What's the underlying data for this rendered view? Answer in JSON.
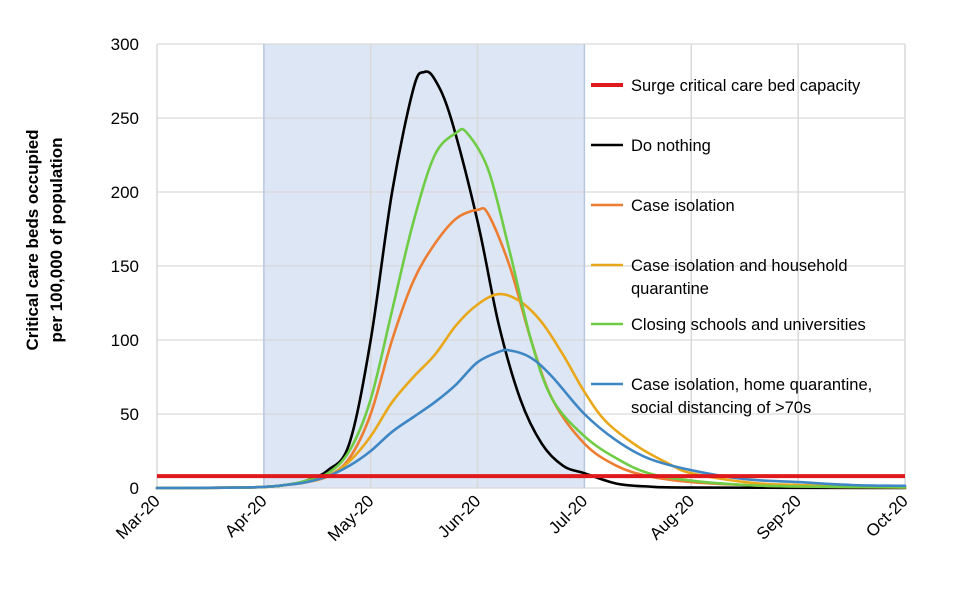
{
  "chart_data": {
    "type": "line",
    "title": "",
    "xlabel": "",
    "ylabel_lines": [
      "Critical care beds occupied",
      "per 100,000 of population"
    ],
    "ylim": [
      0,
      300
    ],
    "yticks": [
      "0",
      "50",
      "100",
      "150",
      "200",
      "250",
      "300"
    ],
    "x_month_range": [
      0,
      7
    ],
    "xticks": [
      "Mar-20",
      "Apr-20",
      "May-20",
      "Jun-20",
      "Jul-20",
      "Aug-20",
      "Sep-20",
      "Oct-20"
    ],
    "intervention_period": [
      1,
      4
    ],
    "grid": true,
    "colors": {
      "shade": "#dce6f4",
      "grid": "#d9d9d9",
      "capacity": "#e0191c"
    },
    "capacity_line": {
      "name": "Surge critical care bed capacity",
      "value": 8
    },
    "series": [
      {
        "name": "Do nothing",
        "color": "#000000",
        "points": [
          [
            0,
            0
          ],
          [
            0.9,
            0.5
          ],
          [
            1.2,
            2
          ],
          [
            1.4,
            5
          ],
          [
            1.6,
            12
          ],
          [
            1.8,
            30
          ],
          [
            2.0,
            100
          ],
          [
            2.2,
            200
          ],
          [
            2.4,
            270
          ],
          [
            2.5,
            281
          ],
          [
            2.6,
            276
          ],
          [
            2.75,
            250
          ],
          [
            3.0,
            180
          ],
          [
            3.2,
            110
          ],
          [
            3.4,
            60
          ],
          [
            3.6,
            30
          ],
          [
            3.8,
            15
          ],
          [
            4.0,
            10
          ],
          [
            4.3,
            3
          ],
          [
            4.6,
            1
          ],
          [
            5.0,
            0.3
          ],
          [
            7,
            0
          ]
        ]
      },
      {
        "name": "Case isolation",
        "color": "#ed7d31",
        "points": [
          [
            0,
            0
          ],
          [
            0.9,
            0.5
          ],
          [
            1.2,
            2
          ],
          [
            1.4,
            4
          ],
          [
            1.6,
            8
          ],
          [
            1.8,
            20
          ],
          [
            2.0,
            50
          ],
          [
            2.2,
            100
          ],
          [
            2.4,
            140
          ],
          [
            2.6,
            165
          ],
          [
            2.8,
            182
          ],
          [
            3.0,
            188
          ],
          [
            3.1,
            185
          ],
          [
            3.3,
            150
          ],
          [
            3.5,
            100
          ],
          [
            3.7,
            60
          ],
          [
            4.0,
            30
          ],
          [
            4.3,
            15
          ],
          [
            4.6,
            8
          ],
          [
            5.0,
            4
          ],
          [
            5.5,
            2
          ],
          [
            6.0,
            1
          ],
          [
            7,
            0.3
          ]
        ]
      },
      {
        "name": "Case isolation and household quarantine",
        "color": "#e9a81a",
        "points": [
          [
            0,
            0
          ],
          [
            0.9,
            0.5
          ],
          [
            1.2,
            2
          ],
          [
            1.4,
            4
          ],
          [
            1.6,
            8
          ],
          [
            1.8,
            18
          ],
          [
            2.0,
            35
          ],
          [
            2.2,
            58
          ],
          [
            2.4,
            75
          ],
          [
            2.6,
            90
          ],
          [
            2.8,
            110
          ],
          [
            3.0,
            124
          ],
          [
            3.2,
            131
          ],
          [
            3.4,
            126
          ],
          [
            3.6,
            112
          ],
          [
            3.8,
            90
          ],
          [
            4.0,
            65
          ],
          [
            4.2,
            45
          ],
          [
            4.5,
            28
          ],
          [
            4.8,
            16
          ],
          [
            5.0,
            10
          ],
          [
            5.5,
            4
          ],
          [
            6.0,
            2
          ],
          [
            7,
            1
          ]
        ]
      },
      {
        "name": "Closing schools and universities",
        "color": "#6fcc45",
        "points": [
          [
            0,
            0
          ],
          [
            0.9,
            0.5
          ],
          [
            1.2,
            2
          ],
          [
            1.4,
            5
          ],
          [
            1.6,
            10
          ],
          [
            1.8,
            25
          ],
          [
            2.0,
            60
          ],
          [
            2.2,
            120
          ],
          [
            2.4,
            180
          ],
          [
            2.6,
            225
          ],
          [
            2.8,
            240
          ],
          [
            2.9,
            240
          ],
          [
            3.1,
            215
          ],
          [
            3.3,
            160
          ],
          [
            3.5,
            100
          ],
          [
            3.7,
            60
          ],
          [
            4.0,
            35
          ],
          [
            4.3,
            20
          ],
          [
            4.6,
            10
          ],
          [
            5.0,
            5
          ],
          [
            5.5,
            2
          ],
          [
            6.0,
            1
          ],
          [
            7,
            0.5
          ]
        ]
      },
      {
        "name": "Case isolation, home quarantine, social distancing of >70s",
        "color": "#3f86c4",
        "points": [
          [
            0,
            0
          ],
          [
            0.9,
            0.5
          ],
          [
            1.2,
            2
          ],
          [
            1.4,
            4
          ],
          [
            1.6,
            8
          ],
          [
            1.8,
            15
          ],
          [
            2.0,
            25
          ],
          [
            2.2,
            38
          ],
          [
            2.4,
            48
          ],
          [
            2.6,
            58
          ],
          [
            2.8,
            70
          ],
          [
            3.0,
            85
          ],
          [
            3.2,
            92
          ],
          [
            3.3,
            93
          ],
          [
            3.5,
            88
          ],
          [
            3.7,
            75
          ],
          [
            4.0,
            50
          ],
          [
            4.3,
            32
          ],
          [
            4.6,
            20
          ],
          [
            5.0,
            12
          ],
          [
            5.5,
            6
          ],
          [
            6.0,
            4
          ],
          [
            6.5,
            2
          ],
          [
            7,
            1.5
          ]
        ]
      }
    ],
    "legend": [
      "Surge critical care bed capacity",
      "Do nothing",
      "Case isolation",
      [
        "Case isolation and household",
        "quarantine"
      ],
      "Closing schools and universities",
      [
        "Case isolation, home quarantine,",
        "social distancing of >70s"
      ]
    ]
  }
}
